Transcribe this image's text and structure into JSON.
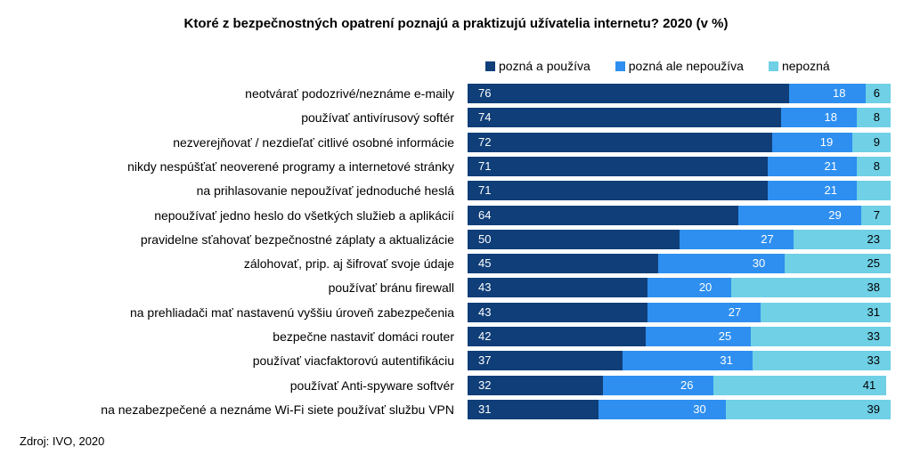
{
  "chart_data": {
    "type": "bar",
    "orientation": "horizontal",
    "stacked": true,
    "title": "Ktoré z bezpečnostných opatrení poznajú a praktizujú užívatelia internetu? 2020 (v %)",
    "categories": [
      "neotvárať podozrivé/neznáme e-maily",
      "používať antivírusový softér",
      "nezverejňovať / nezdieľať citlivé osobné informácie",
      "nikdy nespúšťať neoverené programy a internetové stránky",
      "na prihlasovanie nepoužívať jednoduché heslá",
      "nepoužívať jedno heslo do všetkých služieb a aplikácií",
      "pravidelne sťahovať bezpečnostné záplaty a aktualizácie",
      "zálohovať, prip. aj šifrovať svoje údaje",
      "používať bránu firewall",
      "na prehliadači mať nastavenú vyššiu úroveň zabezpečenia",
      "bezpečne nastaviť domáci router",
      "používať viacfaktorovú autentifikáciu",
      "používať Anti-spyware softvér",
      "na nezabezpečené a neznáme Wi-Fi siete používať službu VPN"
    ],
    "series": [
      {
        "name": "pozná a používa",
        "color": "#0f3e78",
        "values": [
          76,
          74,
          72,
          71,
          71,
          64,
          50,
          45,
          43,
          43,
          42,
          37,
          32,
          31
        ]
      },
      {
        "name": "pozná ale nepoužíva",
        "color": "#2e8ff0",
        "values": [
          18,
          18,
          19,
          21,
          21,
          29,
          27,
          30,
          20,
          27,
          25,
          31,
          26,
          30
        ]
      },
      {
        "name": "nepozná",
        "color": "#6fd0e6",
        "values": [
          6,
          8,
          9,
          8,
          null,
          7,
          23,
          25,
          38,
          31,
          33,
          33,
          41,
          39
        ]
      }
    ],
    "xlim": [
      0,
      100
    ],
    "legend_position": "top-right",
    "grid": false
  },
  "source": "Zdroj: IVO, 2020"
}
